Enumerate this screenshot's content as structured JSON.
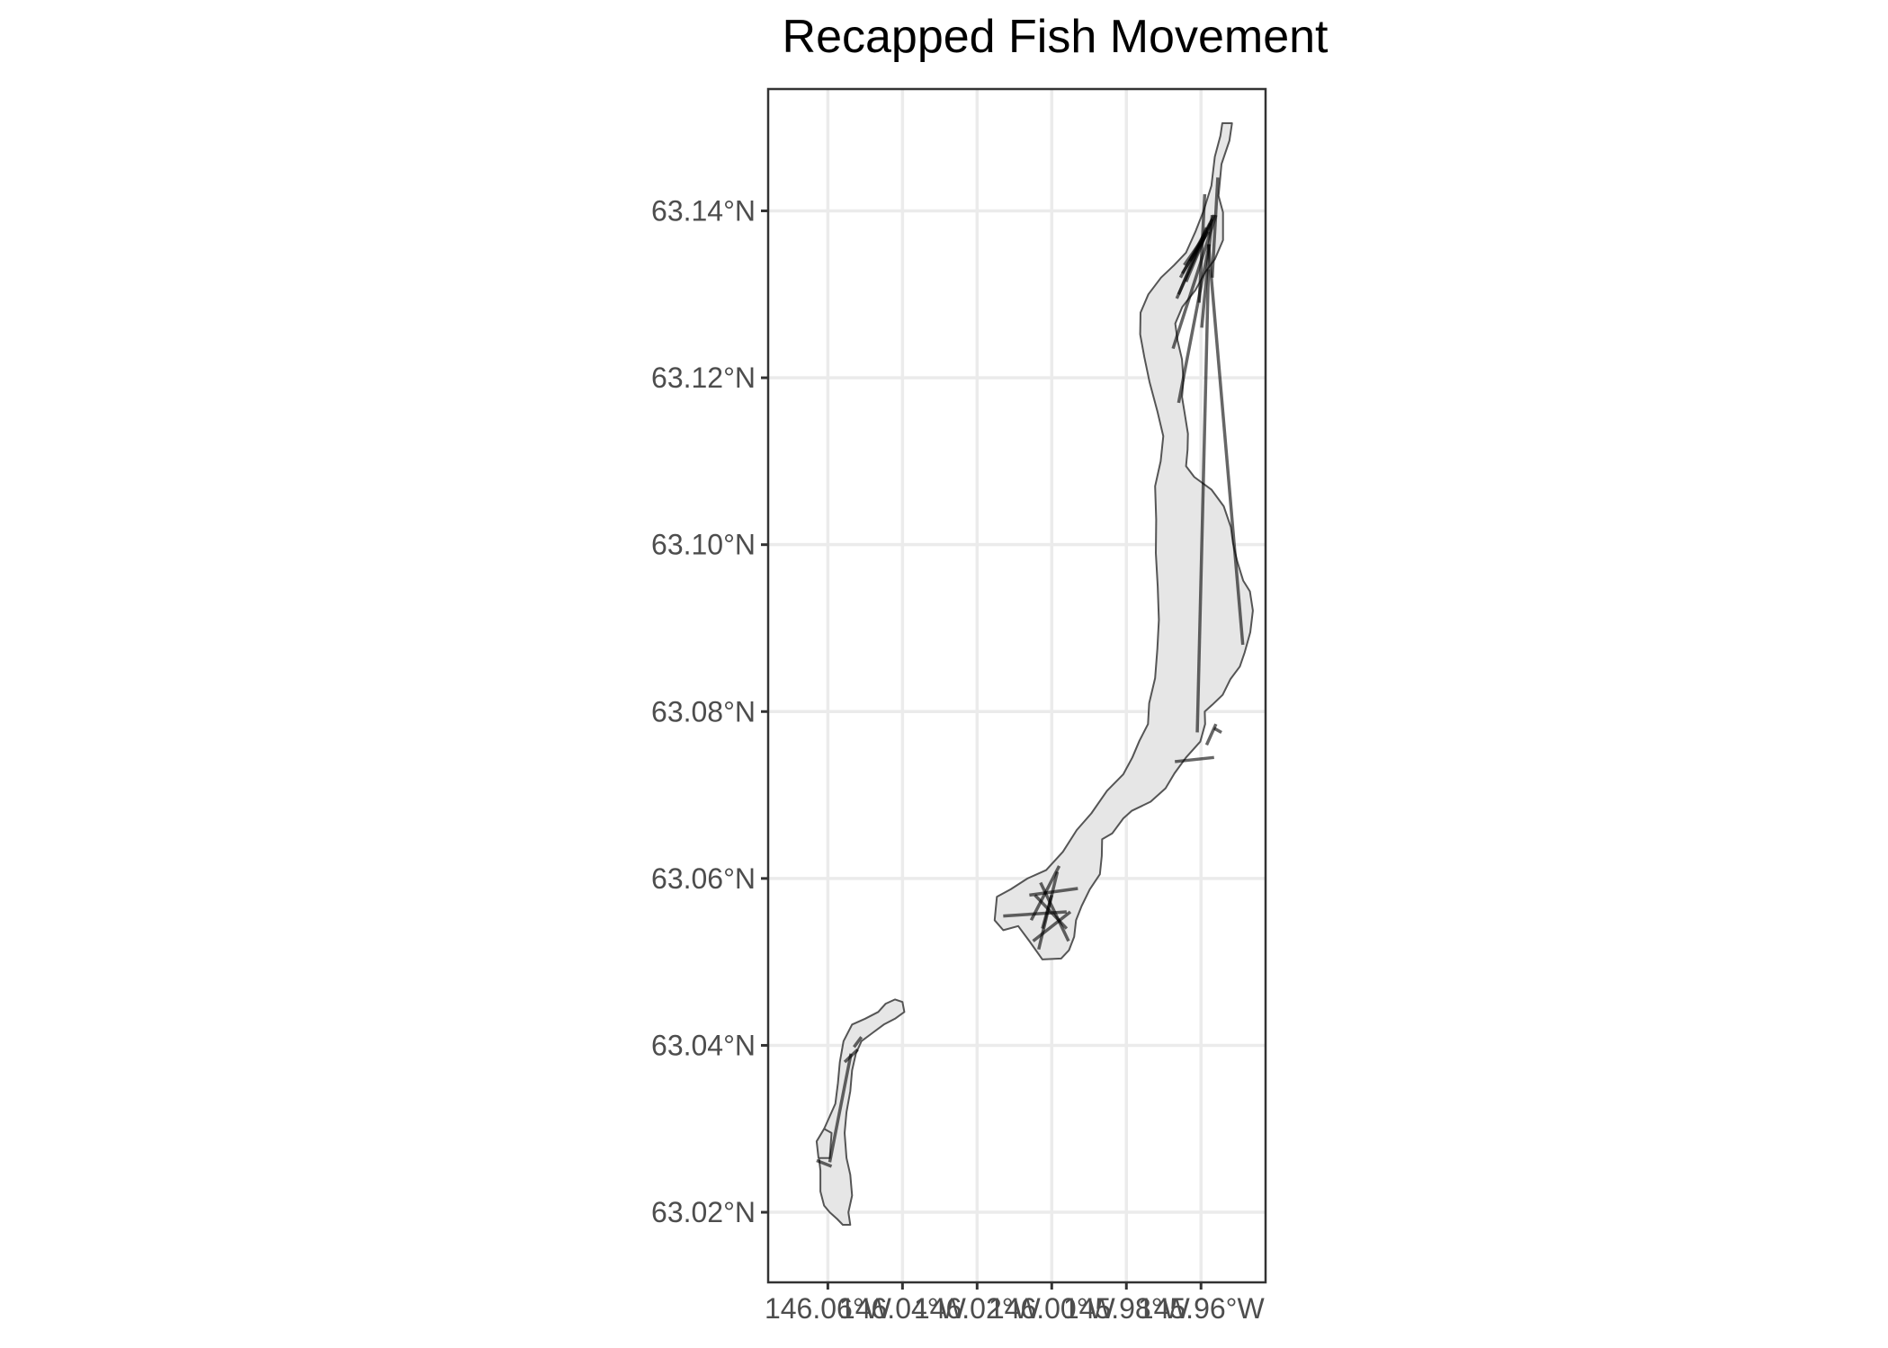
{
  "title": "Recapped Fish Movement",
  "colors": {
    "background": "#ffffff",
    "panel_grid": "#ebebeb",
    "panel_border": "#333333",
    "water_fill": "#e6e6e6",
    "water_outline": "#555555",
    "movement_line": "#000000"
  },
  "chart_data": {
    "type": "map",
    "title": "Recapped Fish Movement",
    "xlabel": "",
    "ylabel": "",
    "grid": true,
    "x_ticks": [
      {
        "value": -146.06,
        "label": "146.06°W"
      },
      {
        "value": -146.04,
        "label": "146.04°W"
      },
      {
        "value": -146.02,
        "label": "146.02°W"
      },
      {
        "value": -146.0,
        "label": "146.00°W"
      },
      {
        "value": -145.98,
        "label": "145.98°W"
      },
      {
        "value": -145.96,
        "label": "145.96°W"
      }
    ],
    "y_ticks": [
      {
        "value": 63.14,
        "label": "63.14°N"
      },
      {
        "value": 63.12,
        "label": "63.12°N"
      },
      {
        "value": 63.1,
        "label": "63.10°N"
      },
      {
        "value": 63.08,
        "label": "63.08°N"
      },
      {
        "value": 63.06,
        "label": "63.06°N"
      },
      {
        "value": 63.04,
        "label": "63.04°N"
      },
      {
        "value": 63.02,
        "label": "63.02°N"
      }
    ],
    "xlim": [
      -146.076,
      -145.9427
    ],
    "ylim": [
      63.0116,
      63.1546
    ],
    "water_bodies": [
      {
        "name": "",
        "coords": [
          [
            -145.9543,
            63.1505
          ],
          [
            -145.9517,
            63.1505
          ],
          [
            -145.9524,
            63.1484
          ],
          [
            -145.9545,
            63.1456
          ],
          [
            -145.9553,
            63.1418
          ],
          [
            -145.9541,
            63.1398
          ],
          [
            -145.9541,
            63.1365
          ],
          [
            -145.9563,
            63.1342
          ],
          [
            -145.9588,
            63.1327
          ],
          [
            -145.9615,
            63.1305
          ],
          [
            -145.965,
            63.1285
          ],
          [
            -145.9669,
            63.1265
          ],
          [
            -145.9663,
            63.1245
          ],
          [
            -145.9651,
            63.1222
          ],
          [
            -145.9647,
            63.1197
          ],
          [
            -145.9651,
            63.1177
          ],
          [
            -145.9644,
            63.1158
          ],
          [
            -145.9635,
            63.1133
          ],
          [
            -145.9636,
            63.1114
          ],
          [
            -145.964,
            63.1094
          ],
          [
            -145.9618,
            63.1081
          ],
          [
            -145.9572,
            63.1066
          ],
          [
            -145.9539,
            63.1046
          ],
          [
            -145.952,
            63.1021
          ],
          [
            -145.9514,
            63.1001
          ],
          [
            -145.9503,
            63.098
          ],
          [
            -145.9487,
            63.0957
          ],
          [
            -145.9469,
            63.0944
          ],
          [
            -145.9461,
            63.0921
          ],
          [
            -145.9468,
            63.0895
          ],
          [
            -145.9483,
            63.0871
          ],
          [
            -145.9496,
            63.0854
          ],
          [
            -145.9521,
            63.0839
          ],
          [
            -145.9542,
            63.082
          ],
          [
            -145.957,
            63.0808
          ],
          [
            -145.959,
            63.08
          ],
          [
            -145.9589,
            63.0785
          ],
          [
            -145.9602,
            63.0764
          ],
          [
            -145.964,
            63.0745
          ],
          [
            -145.9671,
            63.0726
          ],
          [
            -145.9695,
            63.0708
          ],
          [
            -145.9735,
            63.0692
          ],
          [
            -145.9786,
            63.0681
          ],
          [
            -145.9808,
            63.0672
          ],
          [
            -145.9838,
            63.0654
          ],
          [
            -145.9865,
            63.0647
          ],
          [
            -145.9866,
            63.0627
          ],
          [
            -145.9871,
            63.0605
          ],
          [
            -145.9898,
            63.0587
          ],
          [
            -145.992,
            63.0567
          ],
          [
            -145.9935,
            63.055
          ],
          [
            -145.994,
            63.053
          ],
          [
            -145.9954,
            63.0514
          ],
          [
            -145.9975,
            63.0504
          ],
          [
            -146.0025,
            63.0503
          ],
          [
            -146.006,
            63.0525
          ],
          [
            -146.009,
            63.0543
          ],
          [
            -146.013,
            63.0538
          ],
          [
            -146.0153,
            63.055
          ],
          [
            -146.0147,
            63.0578
          ],
          [
            -146.011,
            63.0587
          ],
          [
            -146.0065,
            63.06
          ],
          [
            -146.0015,
            63.061
          ],
          [
            -145.997,
            63.0632
          ],
          [
            -145.9933,
            63.0658
          ],
          [
            -145.9894,
            63.0678
          ],
          [
            -145.9852,
            63.0705
          ],
          [
            -145.9808,
            63.0725
          ],
          [
            -145.9784,
            63.0745
          ],
          [
            -145.9765,
            63.0765
          ],
          [
            -145.9742,
            63.0785
          ],
          [
            -145.9739,
            63.081
          ],
          [
            -145.9723,
            63.084
          ],
          [
            -145.9717,
            63.0875
          ],
          [
            -145.9713,
            63.091
          ],
          [
            -145.9716,
            63.095
          ],
          [
            -145.9721,
            63.099
          ],
          [
            -145.972,
            63.103
          ],
          [
            -145.9723,
            63.107
          ],
          [
            -145.9708,
            63.11
          ],
          [
            -145.9701,
            63.113
          ],
          [
            -145.9717,
            63.116
          ],
          [
            -145.9738,
            63.1195
          ],
          [
            -145.9752,
            63.1225
          ],
          [
            -145.9763,
            63.1252
          ],
          [
            -145.9762,
            63.1278
          ],
          [
            -145.9741,
            63.13
          ],
          [
            -145.9707,
            63.132
          ],
          [
            -145.9672,
            63.1335
          ],
          [
            -145.964,
            63.135
          ],
          [
            -145.9615,
            63.1375
          ],
          [
            -145.9593,
            63.14
          ],
          [
            -145.9572,
            63.143
          ],
          [
            -145.9563,
            63.1465
          ],
          [
            -145.9548,
            63.149
          ],
          [
            -145.9543,
            63.1505
          ]
        ]
      },
      {
        "name": "",
        "coords": [
          [
            -146.054,
            63.0185
          ],
          [
            -146.056,
            63.0185
          ],
          [
            -146.0575,
            63.0192
          ],
          [
            -146.0595,
            63.02
          ],
          [
            -146.061,
            63.0208
          ],
          [
            -146.062,
            63.0225
          ],
          [
            -146.062,
            63.025
          ],
          [
            -146.0625,
            63.027
          ],
          [
            -146.062,
            63.029
          ],
          [
            -146.06,
            63.031
          ],
          [
            -146.058,
            63.033
          ],
          [
            -146.0573,
            63.0355
          ],
          [
            -146.0568,
            63.038
          ],
          [
            -146.0558,
            63.0405
          ],
          [
            -146.0535,
            63.0425
          ],
          [
            -146.05,
            63.0432
          ],
          [
            -146.0465,
            63.044
          ],
          [
            -146.0445,
            63.045
          ],
          [
            -146.042,
            63.0455
          ],
          [
            -146.04,
            63.0452
          ],
          [
            -146.0395,
            63.044
          ],
          [
            -146.042,
            63.0432
          ],
          [
            -146.045,
            63.0425
          ],
          [
            -146.048,
            63.0415
          ],
          [
            -146.051,
            63.0405
          ],
          [
            -146.0525,
            63.039
          ],
          [
            -146.0535,
            63.037
          ],
          [
            -146.054,
            63.0345
          ],
          [
            -146.055,
            63.032
          ],
          [
            -146.0555,
            63.0295
          ],
          [
            -146.055,
            63.0265
          ],
          [
            -146.054,
            63.0245
          ],
          [
            -146.0535,
            63.022
          ],
          [
            -146.0545,
            63.02
          ],
          [
            -146.054,
            63.0185
          ]
        ]
      },
      {
        "name": "",
        "coords": [
          [
            -146.0595,
            63.0265
          ],
          [
            -146.0625,
            63.0265
          ],
          [
            -146.063,
            63.0285
          ],
          [
            -146.061,
            63.03
          ],
          [
            -146.059,
            63.0295
          ],
          [
            -146.0595,
            63.0265
          ]
        ]
      }
    ],
    "movements": [
      {
        "from": [
          -145.9575,
          63.1385
        ],
        "to": [
          -145.9665,
          63.1295
        ]
      },
      {
        "from": [
          -145.9585,
          63.138
        ],
        "to": [
          -145.966,
          63.13
        ]
      },
      {
        "from": [
          -145.957,
          63.139
        ],
        "to": [
          -145.9655,
          63.132
        ]
      },
      {
        "from": [
          -145.959,
          63.137
        ],
        "to": [
          -145.9645,
          63.1335
        ]
      },
      {
        "from": [
          -145.958,
          63.1375
        ],
        "to": [
          -145.963,
          63.134
        ]
      },
      {
        "from": [
          -145.9595,
          63.1365
        ],
        "to": [
          -145.965,
          63.1325
        ]
      },
      {
        "from": [
          -145.9565,
          63.1395
        ],
        "to": [
          -145.964,
          63.1315
        ]
      },
      {
        "from": [
          -145.956,
          63.1395
        ],
        "to": [
          -145.9675,
          63.1235
        ]
      },
      {
        "from": [
          -145.9578,
          63.136
        ],
        "to": [
          -145.966,
          63.117
        ]
      },
      {
        "from": [
          -145.959,
          63.142
        ],
        "to": [
          -145.9605,
          63.129
        ]
      },
      {
        "from": [
          -145.957,
          63.1395
        ],
        "to": [
          -145.9598,
          63.126
        ]
      },
      {
        "from": [
          -145.9555,
          63.144
        ],
        "to": [
          -145.957,
          63.132
        ]
      },
      {
        "from": [
          -145.958,
          63.133
        ],
        "to": [
          -145.961,
          63.0775
        ]
      },
      {
        "from": [
          -145.958,
          63.136
        ],
        "to": [
          -145.9488,
          63.088
        ]
      },
      {
        "from": [
          -145.967,
          63.074
        ],
        "to": [
          -145.9565,
          63.0745
        ]
      },
      {
        "from": [
          -145.9585,
          63.076
        ],
        "to": [
          -145.956,
          63.0785
        ]
      },
      {
        "from": [
          -145.9565,
          63.078
        ],
        "to": [
          -145.9545,
          63.0775
        ]
      },
      {
        "from": [
          -146.006,
          63.058
        ],
        "to": [
          -145.993,
          63.0588
        ]
      },
      {
        "from": [
          -146.003,
          63.0595
        ],
        "to": [
          -145.9955,
          63.0525
        ]
      },
      {
        "from": [
          -145.9985,
          63.0608
        ],
        "to": [
          -146.0035,
          63.0515
        ]
      },
      {
        "from": [
          -146.013,
          63.0555
        ],
        "to": [
          -145.996,
          63.056
        ]
      },
      {
        "from": [
          -146.0055,
          63.055
        ],
        "to": [
          -145.998,
          63.0615
        ]
      },
      {
        "from": [
          -146.0045,
          63.058
        ],
        "to": [
          -145.996,
          63.054
        ]
      },
      {
        "from": [
          -146.0,
          63.058
        ],
        "to": [
          -146.0025,
          63.054
        ]
      },
      {
        "from": [
          -146.005,
          63.0525
        ],
        "to": [
          -145.995,
          63.056
        ]
      },
      {
        "from": [
          -146.0595,
          63.026
        ],
        "to": [
          -146.0538,
          63.039
        ]
      },
      {
        "from": [
          -146.063,
          63.0262
        ],
        "to": [
          -146.059,
          63.0255
        ]
      },
      {
        "from": [
          -146.053,
          63.0398
        ],
        "to": [
          -146.051,
          63.041
        ]
      },
      {
        "from": [
          -146.0555,
          63.038
        ],
        "to": [
          -146.052,
          63.0395
        ]
      }
    ]
  }
}
